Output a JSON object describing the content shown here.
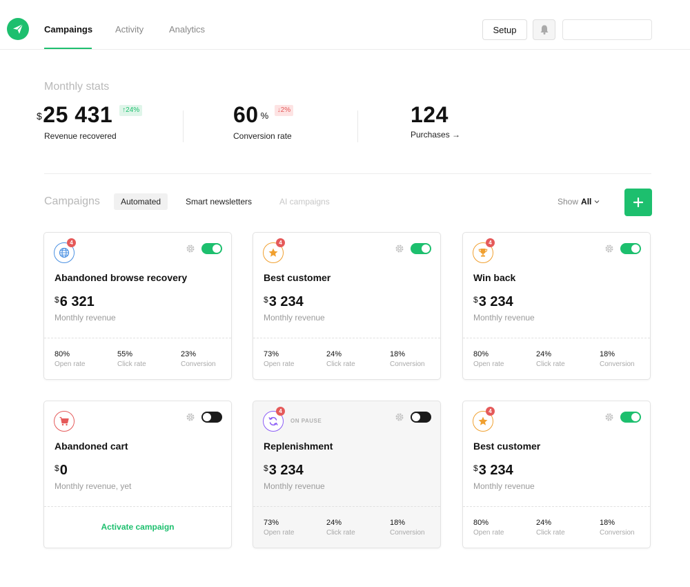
{
  "nav": {
    "tabs": [
      {
        "label": "Campaings",
        "active": true
      },
      {
        "label": "Activity",
        "active": false
      },
      {
        "label": "Analytics",
        "active": false
      }
    ],
    "setup_label": "Setup",
    "icons": {
      "logo": "paper-plane-icon",
      "bell": "bell-icon"
    }
  },
  "stats": {
    "title": "Monthly stats",
    "revenue": {
      "currency": "$",
      "value": "25 431",
      "delta": "↑24%",
      "label": "Revenue recovered"
    },
    "conversion": {
      "value": "60",
      "unit": "%",
      "delta": "↓2%",
      "label": "Conversion rate"
    },
    "purchases": {
      "value": "124",
      "label": "Purchases →"
    }
  },
  "campaigns": {
    "title": "Campaigns",
    "tabs": [
      {
        "label": "Automated",
        "active": true
      },
      {
        "label": "Smart newsletters",
        "active": false
      },
      {
        "label": "AI campaigns",
        "active": false,
        "disabled": true
      }
    ],
    "show_label": "Show",
    "show_value": "All"
  },
  "colors": {
    "accent": "#1dbf6e",
    "danger": "#e55a5a",
    "orange": "#f0a030",
    "blue": "#4a90e2",
    "purple": "#8b5cf6"
  },
  "cards": [
    {
      "title": "Abandoned browse recovery",
      "icon": "globe-icon",
      "badge": "4",
      "enabled": true,
      "currency": "$",
      "revenue": "6 321",
      "sub": "Monthly revenue",
      "metrics": [
        {
          "value": "80%",
          "label": "Open rate"
        },
        {
          "value": "55%",
          "label": "Click rate"
        },
        {
          "value": "23%",
          "label": "Conversion"
        }
      ]
    },
    {
      "title": "Best customer",
      "icon": "star-icon",
      "badge": "4",
      "enabled": true,
      "currency": "$",
      "revenue": "3 234",
      "sub": "Monthly revenue",
      "metrics": [
        {
          "value": "73%",
          "label": "Open rate"
        },
        {
          "value": "24%",
          "label": "Click rate"
        },
        {
          "value": "18%",
          "label": "Conversion"
        }
      ]
    },
    {
      "title": "Win back",
      "icon": "trophy-icon",
      "badge": "4",
      "enabled": true,
      "currency": "$",
      "revenue": "3 234",
      "sub": "Monthly revenue",
      "metrics": [
        {
          "value": "80%",
          "label": "Open rate"
        },
        {
          "value": "24%",
          "label": "Click rate"
        },
        {
          "value": "18%",
          "label": "Conversion"
        }
      ]
    },
    {
      "title": "Abandoned cart",
      "icon": "cart-icon",
      "enabled": false,
      "currency": "$",
      "revenue": "0",
      "sub": "Monthly revenue, yet",
      "action": "Activate campaign"
    },
    {
      "title": "Replenishment",
      "icon": "refresh-icon",
      "badge": "4",
      "enabled": false,
      "status": "ON PAUSE",
      "currency": "$",
      "revenue": "3 234",
      "sub": "Monthly revenue",
      "metrics": [
        {
          "value": "73%",
          "label": "Open rate"
        },
        {
          "value": "24%",
          "label": "Click rate"
        },
        {
          "value": "18%",
          "label": "Conversion"
        }
      ]
    },
    {
      "title": "Best customer",
      "icon": "star-icon",
      "badge": "4",
      "enabled": true,
      "currency": "$",
      "revenue": "3 234",
      "sub": "Monthly revenue",
      "metrics": [
        {
          "value": "80%",
          "label": "Open rate"
        },
        {
          "value": "24%",
          "label": "Click rate"
        },
        {
          "value": "18%",
          "label": "Conversion"
        }
      ]
    }
  ]
}
